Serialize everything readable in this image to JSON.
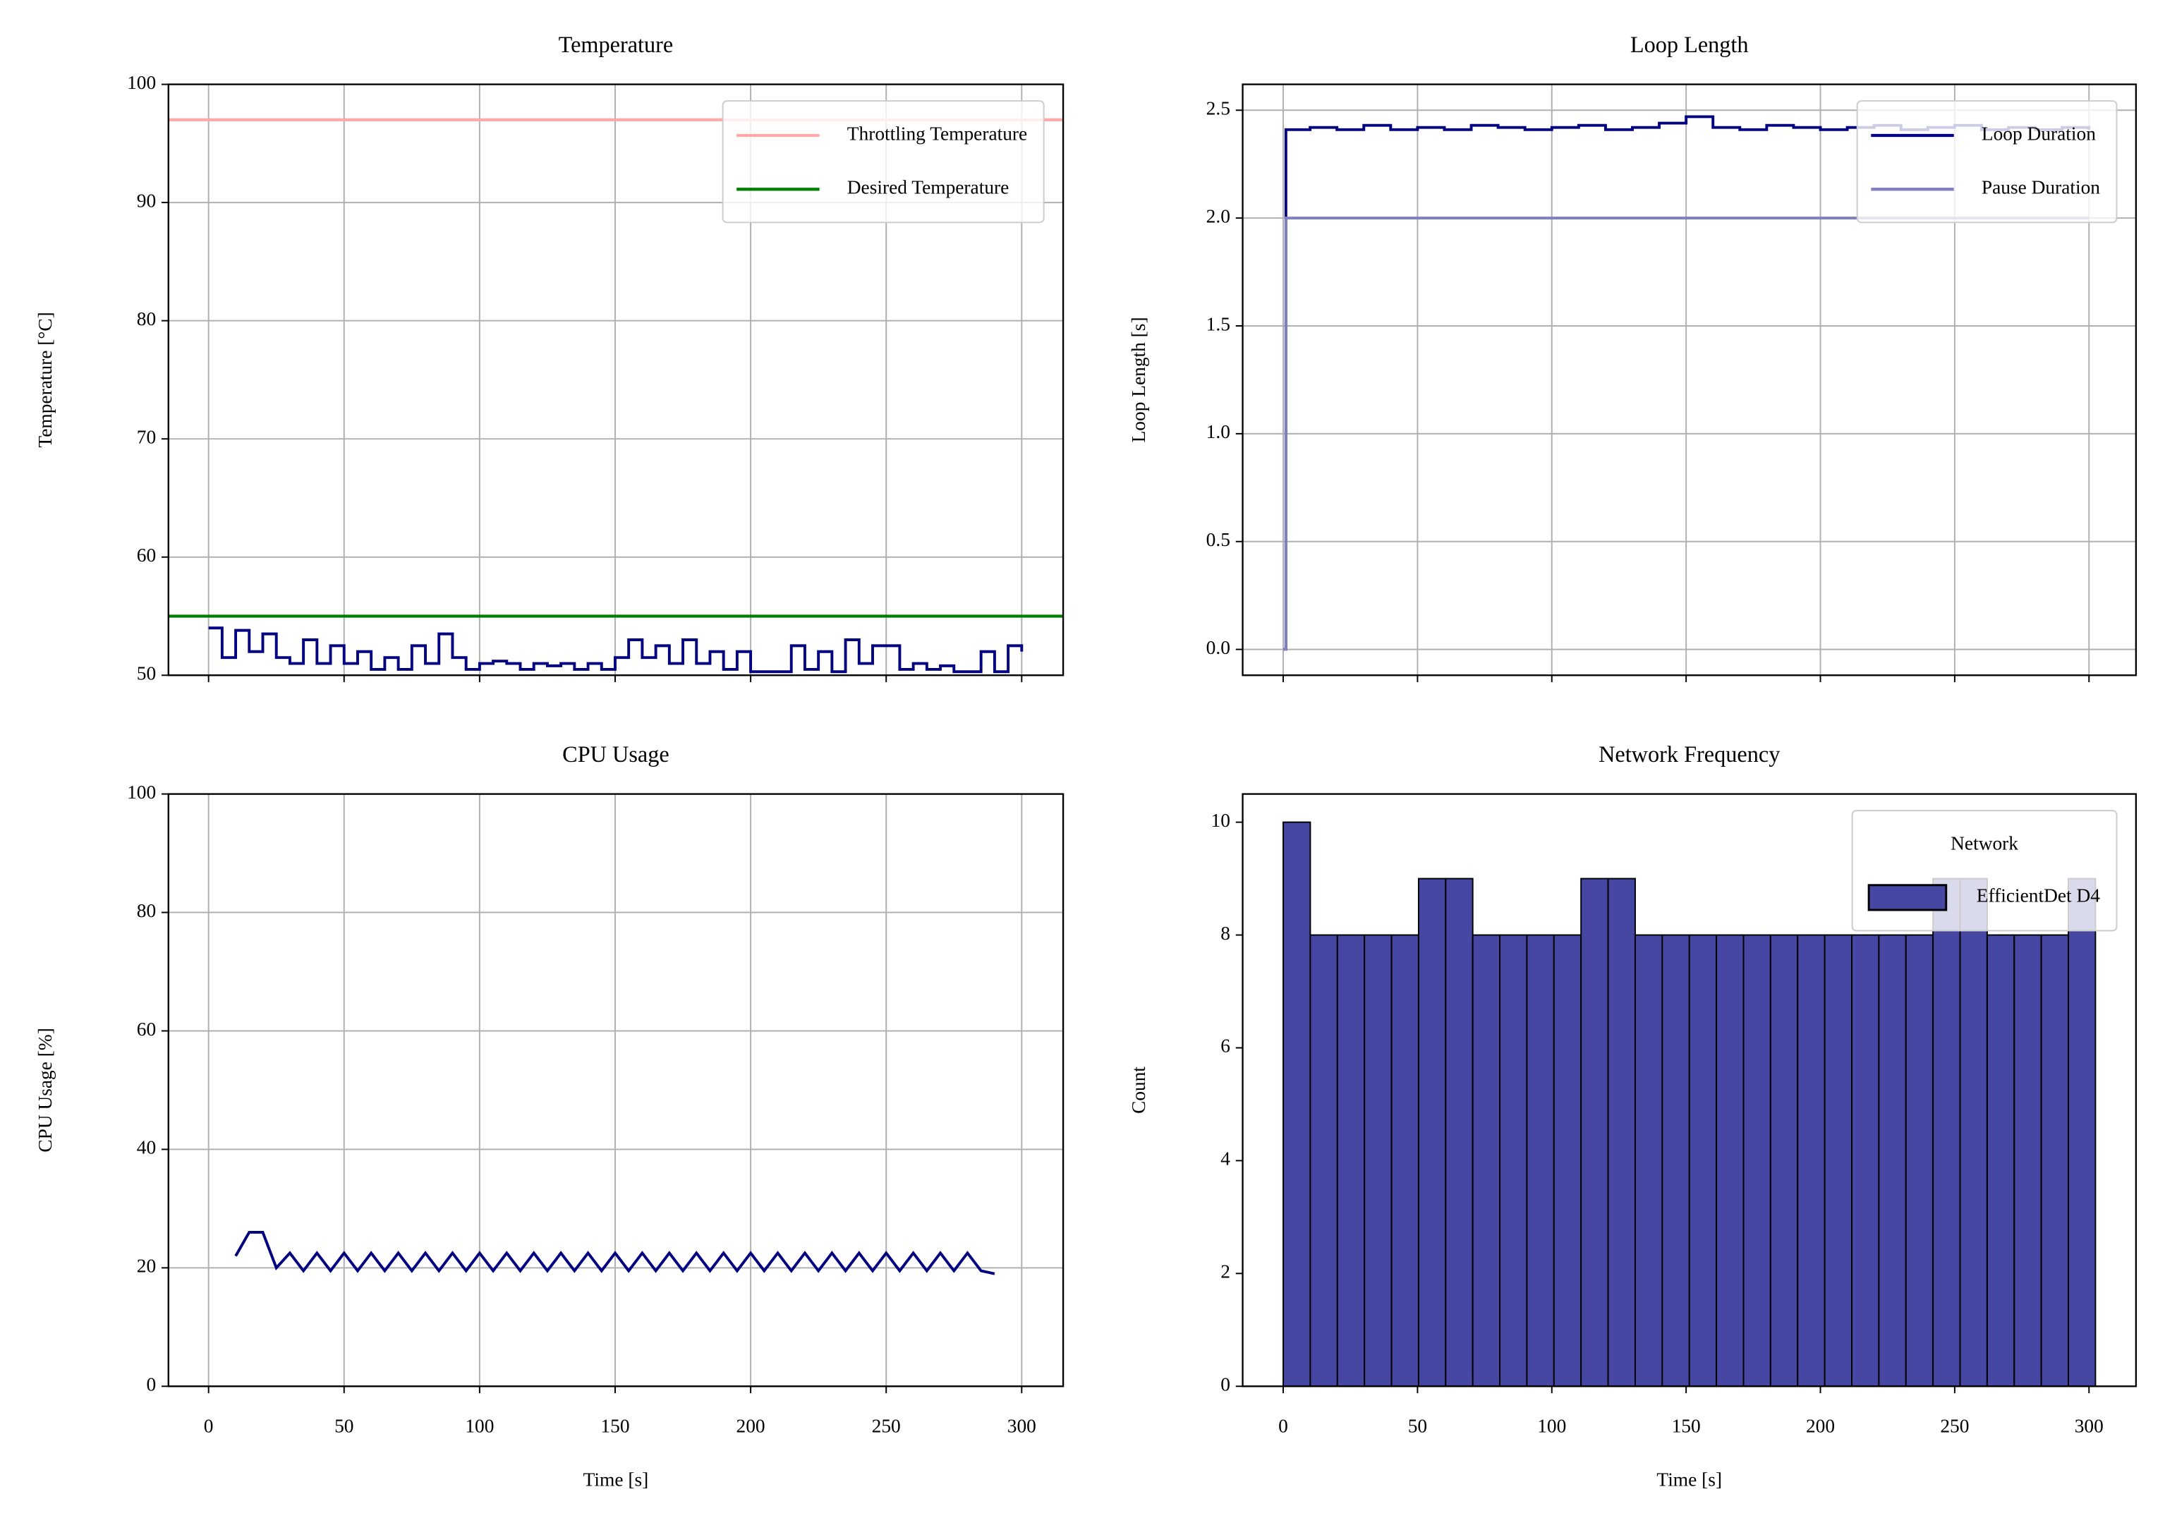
{
  "chart_data": [
    {
      "type": "line",
      "title": "Temperature",
      "ylabel": "Temperature [°C]",
      "drawstyle": "steps-post",
      "grid": true,
      "show_xticklabels": false,
      "legend": "upper right",
      "xlim": [
        -14.8,
        315.3
      ],
      "xticks": [
        0,
        50,
        100,
        150,
        200,
        250,
        300
      ],
      "ylim": [
        50,
        100
      ],
      "yticks": [
        50,
        60,
        70,
        80,
        90,
        100
      ],
      "hlines": [
        {
          "name": "Throttling Temperature",
          "color": "#ffaaaa",
          "value": 97
        },
        {
          "name": "Desired Temperature",
          "color": "#008000",
          "value": 55
        }
      ],
      "x": [
        0,
        5,
        10,
        15,
        20,
        25,
        30,
        35,
        40,
        45,
        50,
        55,
        60,
        65,
        70,
        75,
        80,
        85,
        90,
        95,
        100,
        105,
        110,
        115,
        120,
        125,
        130,
        135,
        140,
        145,
        150,
        155,
        160,
        165,
        170,
        175,
        180,
        185,
        190,
        195,
        200,
        205,
        210,
        215,
        220,
        225,
        230,
        235,
        240,
        245,
        250,
        255,
        260,
        265,
        270,
        275,
        280,
        285,
        290,
        295,
        300
      ],
      "series": [
        {
          "color": "#000080",
          "values": [
            54,
            51.5,
            53.8,
            52,
            53.5,
            51.5,
            51,
            53,
            51,
            52.5,
            51,
            52,
            50.5,
            51.5,
            50.5,
            52.5,
            51,
            53.5,
            51.5,
            50.5,
            51,
            51.2,
            51,
            50.5,
            51,
            50.8,
            51,
            50.5,
            51,
            50.5,
            51.5,
            53,
            51.5,
            52.5,
            51,
            53,
            51,
            52,
            50.5,
            52,
            50.3,
            50.3,
            50.3,
            52.5,
            50.5,
            52,
            50.3,
            53,
            51,
            52.5,
            52.5,
            50.5,
            51,
            50.5,
            50.8,
            50.3,
            50.3,
            52,
            50.3,
            52.5,
            52
          ]
        }
      ]
    },
    {
      "type": "line",
      "title": "Loop Length",
      "ylabel": "Loop Length [s]",
      "drawstyle": "steps-post",
      "grid": true,
      "show_xticklabels": false,
      "legend": "upper right",
      "xlim": [
        -15.1,
        317.5
      ],
      "xticks": [
        0,
        50,
        100,
        150,
        200,
        250,
        300
      ],
      "ylim": [
        -0.12,
        2.62
      ],
      "yticks": [
        {
          "value": 0,
          "label": "0.0"
        },
        0.5,
        {
          "value": 1,
          "label": "1.0"
        },
        1.5,
        {
          "value": 2,
          "label": "2.0"
        },
        2.5
      ],
      "x": [
        0,
        1,
        10,
        20,
        30,
        40,
        50,
        60,
        70,
        80,
        90,
        100,
        110,
        120,
        130,
        140,
        150,
        160,
        170,
        180,
        190,
        200,
        210,
        220,
        230,
        240,
        250,
        260,
        270,
        280,
        290,
        300
      ],
      "series": [
        {
          "name": "Loop Duration",
          "color": "#000080",
          "values": [
            0,
            2.41,
            2.42,
            2.41,
            2.43,
            2.41,
            2.42,
            2.41,
            2.43,
            2.42,
            2.41,
            2.42,
            2.43,
            2.41,
            2.42,
            2.44,
            2.47,
            2.42,
            2.41,
            2.43,
            2.42,
            2.41,
            2.42,
            2.43,
            2.41,
            2.42,
            2.43,
            2.41,
            2.42,
            2.41,
            2.42,
            2.41
          ]
        },
        {
          "name": "Pause Duration",
          "color": "#8080c0",
          "values": [
            0,
            2,
            2,
            2,
            2,
            2,
            2,
            2,
            2,
            2,
            2,
            2,
            2,
            2,
            2,
            2,
            2,
            2,
            2,
            2,
            2,
            2,
            2,
            2,
            2,
            2,
            2,
            2,
            2,
            2,
            2,
            2
          ]
        }
      ]
    },
    {
      "type": "line",
      "title": "CPU Usage",
      "ylabel": "CPU Usage [%]",
      "xlabel": "Time [s]",
      "grid": true,
      "xlim": [
        -14.8,
        315.3
      ],
      "xticks": [
        0,
        50,
        100,
        150,
        200,
        250,
        300
      ],
      "ylim": [
        0,
        100
      ],
      "yticks": [
        0,
        20,
        40,
        60,
        80,
        100
      ],
      "x": [
        10,
        15,
        20,
        25,
        30,
        35,
        40,
        45,
        50,
        55,
        60,
        65,
        70,
        75,
        80,
        85,
        90,
        95,
        100,
        105,
        110,
        115,
        120,
        125,
        130,
        135,
        140,
        145,
        150,
        155,
        160,
        165,
        170,
        175,
        180,
        185,
        190,
        195,
        200,
        205,
        210,
        215,
        220,
        225,
        230,
        235,
        240,
        245,
        250,
        255,
        260,
        265,
        270,
        275,
        280,
        285,
        290
      ],
      "series": [
        {
          "color": "#000080",
          "values": [
            22,
            26,
            26,
            20,
            22.5,
            19.5,
            22.5,
            19.5,
            22.5,
            19.5,
            22.5,
            19.5,
            22.5,
            19.5,
            22.5,
            19.5,
            22.5,
            19.5,
            22.5,
            19.5,
            22.5,
            19.5,
            22.5,
            19.5,
            22.5,
            19.5,
            22.5,
            19.5,
            22.5,
            19.5,
            22.5,
            19.5,
            22.5,
            19.5,
            22.5,
            19.5,
            22.5,
            19.5,
            22.5,
            19.5,
            22.5,
            19.5,
            22.5,
            19.5,
            22.5,
            19.5,
            22.5,
            19.5,
            22.5,
            19.5,
            22.5,
            19.5,
            22.5,
            19.5,
            22.5,
            19.5,
            19
          ]
        }
      ]
    },
    {
      "type": "histogram",
      "title": "Network Frequency",
      "ylabel": "Count",
      "xlabel": "Time [s]",
      "grid": false,
      "legend": "upper right",
      "legend_title": "Network",
      "edgecolor": "#000000",
      "xlim": [
        -15.1,
        317.5
      ],
      "xticks": [
        0,
        50,
        100,
        150,
        200,
        250,
        300
      ],
      "ylim": [
        0,
        10.5
      ],
      "yticks": [
        0,
        2,
        4,
        6,
        8,
        10
      ],
      "bins": [
        0,
        10.08,
        20.16,
        30.24,
        40.32,
        50.4,
        60.48,
        70.56,
        80.64,
        90.72,
        100.8,
        110.88,
        120.96,
        131.04,
        141.12,
        151.2,
        161.28,
        171.36,
        181.44,
        191.52,
        201.6,
        211.68,
        221.76,
        231.84,
        241.92,
        252,
        262.08,
        272.16,
        282.24,
        292.32,
        302.4
      ],
      "series": [
        {
          "name": "EfficientDet D4",
          "color": "#4646a3",
          "values": [
            10,
            8,
            8,
            8,
            8,
            9,
            9,
            8,
            8,
            8,
            8,
            9,
            9,
            8,
            8,
            8,
            8,
            8,
            8,
            8,
            8,
            8,
            8,
            8,
            9,
            9,
            8,
            8,
            8,
            9
          ]
        }
      ]
    }
  ]
}
